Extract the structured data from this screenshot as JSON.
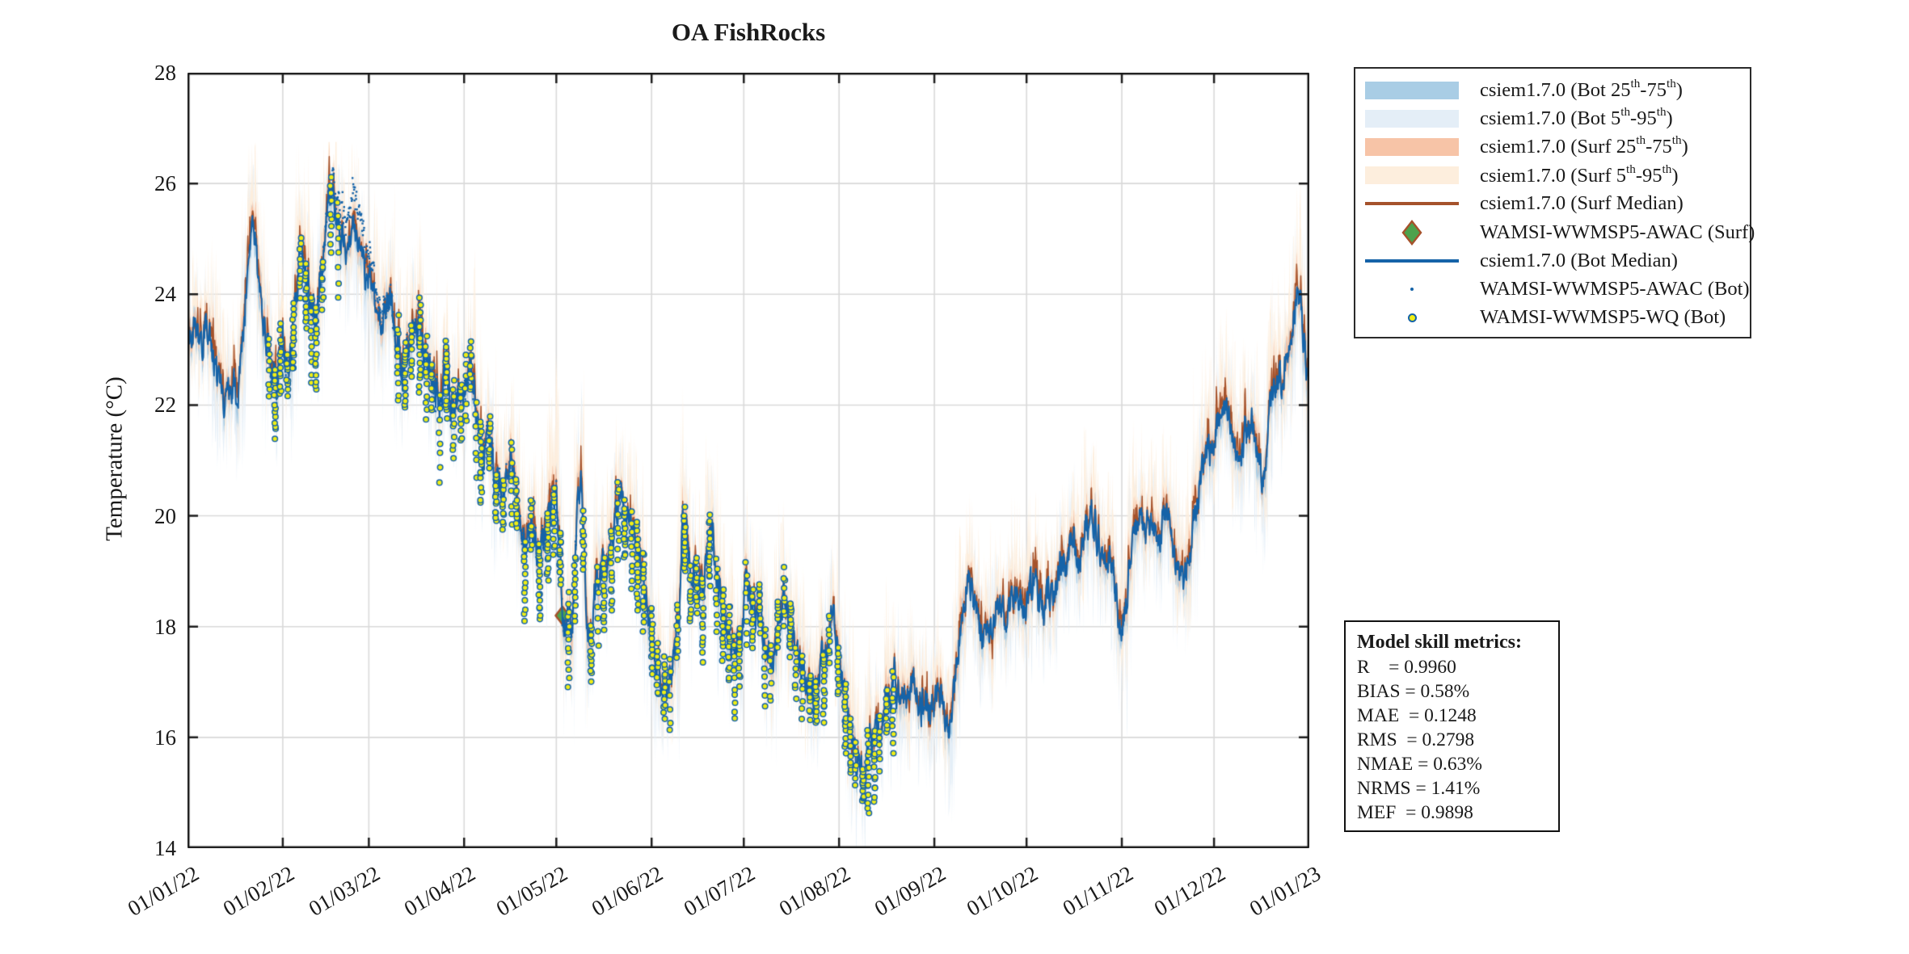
{
  "title": "OA FishRocks",
  "axes": {
    "ylabel": "Temperature (°C)",
    "x_tick_labels": [
      "01/01/22",
      "01/02/22",
      "01/03/22",
      "01/04/22",
      "01/05/22",
      "01/06/22",
      "01/07/22",
      "01/08/22",
      "01/09/22",
      "01/10/22",
      "01/11/22",
      "01/12/22",
      "01/01/23"
    ],
    "y_tick_labels": [
      "28",
      "26",
      "24",
      "22",
      "20",
      "18",
      "16",
      "14"
    ]
  },
  "colors": {
    "bot_median": "#1563a8",
    "surf_median": "#a5522b",
    "bot_25_75": "#a9cde5",
    "bot_5_95": "#e4eef7",
    "surf_25_75": "#f7c4a7",
    "surf_5_95": "#fdeedd",
    "awac_surf_fill": "#4ca24c",
    "awac_surf_edge": "#a5522b",
    "wq_fill": "#f0ee15",
    "wq_edge": "#1563a8",
    "grid": "#d9d9d9",
    "frame": "#1c1c1c"
  },
  "legend": {
    "items": [
      {
        "swatch": "band",
        "color": "#a9cde5",
        "label": "csiem1.7.0 (Bot 25th-75th)"
      },
      {
        "swatch": "band",
        "color": "#e4eef7",
        "label": "csiem1.7.0 (Bot 5th-95th)"
      },
      {
        "swatch": "band",
        "color": "#f7c4a7",
        "label": "csiem1.7.0 (Surf 25th-75th)"
      },
      {
        "swatch": "band",
        "color": "#fdeedd",
        "label": "csiem1.7.0 (Surf 5th-95th)"
      },
      {
        "swatch": "line",
        "color": "#a5522b",
        "label": "csiem1.7.0 (Surf Median)"
      },
      {
        "swatch": "diamond",
        "color": "#4ca24c",
        "edge": "#a5522b",
        "label": "WAMSI-WWMSP5-AWAC (Surf)"
      },
      {
        "swatch": "line",
        "color": "#1563a8",
        "label": "csiem1.7.0 (Bot Median)"
      },
      {
        "swatch": "dot",
        "color": "#1563a8",
        "label": "WAMSI-WWMSP5-AWAC (Bot)"
      },
      {
        "swatch": "circle",
        "color": "#f0ee15",
        "edge": "#1563a8",
        "label": "WAMSI-WWMSP5-WQ (Bot)"
      }
    ]
  },
  "metrics_box": {
    "title": "Model skill metrics:",
    "lines": [
      "R    = 0.9960",
      "BIAS = 0.58%",
      "MAE  = 0.1248",
      "RMS  = 0.2798",
      "NMAE = 0.63%",
      "NRMS = 1.41%",
      "MEF  = 0.9898"
    ]
  },
  "chart_data": {
    "type": "line",
    "title": "OA FishRocks",
    "xlabel": "",
    "ylabel": "Temperature (°C)",
    "x_unit": "days since 01/01/22",
    "ylim": [
      14,
      28
    ],
    "yticks": [
      14,
      16,
      18,
      20,
      22,
      24,
      26,
      28
    ],
    "x_tick_days": [
      0,
      31,
      59,
      90,
      120,
      151,
      181,
      212,
      243,
      273,
      304,
      334,
      365
    ],
    "x_tick_labels": [
      "01/01/22",
      "01/02/22",
      "01/03/22",
      "01/04/22",
      "01/05/22",
      "01/06/22",
      "01/07/22",
      "01/08/22",
      "01/09/22",
      "01/10/22",
      "01/11/22",
      "01/12/22",
      "01/01/23"
    ],
    "grid": true,
    "legend_position": "outside-top-right",
    "series": [
      {
        "name": "csiem1.7.0 (Bot Median)",
        "type": "line",
        "color": "#1563a8",
        "points": [
          [
            0,
            23.2
          ],
          [
            2,
            23.5
          ],
          [
            4,
            22.9
          ],
          [
            6,
            23.4
          ],
          [
            8,
            23.0
          ],
          [
            10,
            22.5
          ],
          [
            12,
            22.3
          ],
          [
            14,
            22.8
          ],
          [
            16,
            22.4
          ],
          [
            18,
            23.6
          ],
          [
            20,
            24.8
          ],
          [
            21,
            25.4
          ],
          [
            22,
            25.2
          ],
          [
            23,
            24.6
          ],
          [
            25,
            23.6
          ],
          [
            27,
            23.0
          ],
          [
            29,
            22.5
          ],
          [
            31,
            23.3
          ],
          [
            33,
            22.6
          ],
          [
            35,
            23.7
          ],
          [
            37,
            24.9
          ],
          [
            38,
            24.4
          ],
          [
            40,
            23.7
          ],
          [
            42,
            23.4
          ],
          [
            44,
            24.5
          ],
          [
            46,
            25.6
          ],
          [
            47,
            25.9
          ],
          [
            48,
            25.5
          ],
          [
            50,
            24.9
          ],
          [
            52,
            24.6
          ],
          [
            54,
            25.1
          ],
          [
            56,
            24.5
          ],
          [
            58,
            24.2
          ],
          [
            60,
            24.4
          ],
          [
            62,
            23.4
          ],
          [
            64,
            23.9
          ],
          [
            66,
            24.3
          ],
          [
            68,
            23.4
          ],
          [
            70,
            23.0
          ],
          [
            72,
            23.3
          ],
          [
            74,
            23.8
          ],
          [
            76,
            23.2
          ],
          [
            78,
            22.7
          ],
          [
            80,
            22.4
          ],
          [
            82,
            21.9
          ],
          [
            84,
            22.4
          ],
          [
            86,
            22.0
          ],
          [
            88,
            22.5
          ],
          [
            90,
            22.2
          ],
          [
            92,
            22.6
          ],
          [
            94,
            21.7
          ],
          [
            96,
            20.9
          ],
          [
            98,
            21.3
          ],
          [
            100,
            20.6
          ],
          [
            102,
            20.2
          ],
          [
            104,
            20.7
          ],
          [
            106,
            20.9
          ],
          [
            108,
            20.1
          ],
          [
            110,
            19.5
          ],
          [
            112,
            19.9
          ],
          [
            114,
            19.4
          ],
          [
            116,
            19.8
          ],
          [
            118,
            20.1
          ],
          [
            120,
            20.6
          ],
          [
            121,
            19.5
          ],
          [
            122,
            18.4
          ],
          [
            123,
            17.8
          ],
          [
            124,
            18.2
          ],
          [
            125,
            18.0
          ],
          [
            126,
            18.8
          ],
          [
            127,
            20.5
          ],
          [
            128,
            20.9
          ],
          [
            129,
            19.6
          ],
          [
            130,
            18.2
          ],
          [
            131,
            17.6
          ],
          [
            132,
            18.2
          ],
          [
            133,
            18.8
          ],
          [
            134,
            19.2
          ],
          [
            136,
            19.3
          ],
          [
            138,
            19.8
          ],
          [
            140,
            20.2
          ],
          [
            141,
            20.4
          ],
          [
            142,
            20.0
          ],
          [
            144,
            20.1
          ],
          [
            146,
            19.5
          ],
          [
            148,
            18.9
          ],
          [
            150,
            18.1
          ],
          [
            152,
            17.5
          ],
          [
            154,
            17.1
          ],
          [
            156,
            16.9
          ],
          [
            158,
            17.4
          ],
          [
            160,
            17.9
          ],
          [
            161,
            19.8
          ],
          [
            162,
            19.9
          ],
          [
            163,
            19.2
          ],
          [
            164,
            18.6
          ],
          [
            165,
            19.0
          ],
          [
            166,
            18.5
          ],
          [
            168,
            18.8
          ],
          [
            170,
            19.9
          ],
          [
            171,
            19.6
          ],
          [
            172,
            18.9
          ],
          [
            174,
            18.4
          ],
          [
            176,
            17.9
          ],
          [
            178,
            17.5
          ],
          [
            180,
            17.8
          ],
          [
            182,
            18.9
          ],
          [
            184,
            18.4
          ],
          [
            186,
            18.6
          ],
          [
            188,
            17.6
          ],
          [
            190,
            17.4
          ],
          [
            192,
            18.2
          ],
          [
            194,
            18.8
          ],
          [
            196,
            18.4
          ],
          [
            198,
            17.8
          ],
          [
            200,
            17.4
          ],
          [
            202,
            17.1
          ],
          [
            204,
            16.7
          ],
          [
            206,
            17.2
          ],
          [
            208,
            17.5
          ],
          [
            210,
            17.9
          ],
          [
            212,
            17.3
          ],
          [
            214,
            16.8
          ],
          [
            216,
            15.9
          ],
          [
            218,
            15.4
          ],
          [
            220,
            15.3
          ],
          [
            221,
            15.7
          ],
          [
            222,
            16.2
          ],
          [
            224,
            16.4
          ],
          [
            226,
            16.2
          ],
          [
            228,
            16.8
          ],
          [
            230,
            17.1
          ],
          [
            232,
            16.7
          ],
          [
            234,
            16.4
          ],
          [
            236,
            17.0
          ],
          [
            238,
            16.7
          ],
          [
            240,
            16.9
          ],
          [
            242,
            16.5
          ],
          [
            244,
            16.8
          ],
          [
            246,
            16.7
          ],
          [
            248,
            16.5
          ],
          [
            250,
            17.2
          ],
          [
            252,
            18.2
          ],
          [
            254,
            18.6
          ],
          [
            256,
            18.3
          ],
          [
            258,
            17.9
          ],
          [
            260,
            17.7
          ],
          [
            262,
            18.0
          ],
          [
            264,
            18.3
          ],
          [
            266,
            18.0
          ],
          [
            268,
            18.2
          ],
          [
            270,
            18.5
          ],
          [
            272,
            18.3
          ],
          [
            274,
            18.6
          ],
          [
            276,
            18.8
          ],
          [
            278,
            18.4
          ],
          [
            280,
            19.0
          ],
          [
            282,
            18.7
          ],
          [
            284,
            19.1
          ],
          [
            286,
            18.8
          ],
          [
            288,
            19.3
          ],
          [
            290,
            18.9
          ],
          [
            292,
            19.6
          ],
          [
            294,
            19.8
          ],
          [
            296,
            19.4
          ],
          [
            298,
            19.0
          ],
          [
            300,
            19.4
          ],
          [
            302,
            18.6
          ],
          [
            304,
            17.9
          ],
          [
            306,
            18.8
          ],
          [
            308,
            19.6
          ],
          [
            310,
            20.0
          ],
          [
            312,
            19.5
          ],
          [
            314,
            19.8
          ],
          [
            316,
            19.3
          ],
          [
            318,
            19.9
          ],
          [
            320,
            19.6
          ],
          [
            322,
            19.1
          ],
          [
            324,
            18.8
          ],
          [
            326,
            19.4
          ],
          [
            328,
            20.2
          ],
          [
            330,
            20.8
          ],
          [
            332,
            21.2
          ],
          [
            334,
            21.4
          ],
          [
            336,
            21.9
          ],
          [
            338,
            22.0
          ],
          [
            340,
            21.4
          ],
          [
            342,
            21.0
          ],
          [
            344,
            21.5
          ],
          [
            346,
            21.7
          ],
          [
            348,
            21.2
          ],
          [
            350,
            20.6
          ],
          [
            352,
            21.8
          ],
          [
            354,
            22.4
          ],
          [
            356,
            22.3
          ],
          [
            358,
            22.7
          ],
          [
            360,
            23.4
          ],
          [
            361,
            24.0
          ],
          [
            362,
            24.2
          ],
          [
            363,
            23.3
          ],
          [
            364,
            22.7
          ],
          [
            365,
            23.0
          ]
        ]
      },
      {
        "name": "csiem1.7.0 (Surf Median)",
        "type": "line",
        "color": "#a5522b",
        "same_points_as": "csiem1.7.0 (Bot Median)",
        "diurnal_spikes_up_to_degC": 1.3
      },
      {
        "name": "csiem1.7.0 (Bot 25th-75th)",
        "type": "band",
        "color": "#a9cde5",
        "typical_half_width_degC": 0.25
      },
      {
        "name": "csiem1.7.0 (Bot 5th-95th)",
        "type": "band",
        "color": "#e4eef7",
        "typical_half_width_degC": 0.65
      },
      {
        "name": "csiem1.7.0 (Surf 25th-75th)",
        "type": "band",
        "color": "#f7c4a7",
        "typical_half_width_degC": 0.3
      },
      {
        "name": "csiem1.7.0 (Surf 5th-95th)",
        "type": "band",
        "color": "#fdeedd",
        "typical_half_width_degC": 0.9
      },
      {
        "name": "WAMSI-WWMSP5-AWAC (Surf)",
        "type": "scatter",
        "marker": "diamond",
        "color": "#4ca24c",
        "edge": "#a5522b",
        "points": [
          [
            122,
            18.2
          ]
        ]
      },
      {
        "name": "WAMSI-WWMSP5-AWAC (Bot)",
        "type": "scatter",
        "marker": "dot",
        "color": "#1563a8",
        "deployment_days": [
          26,
          126
        ],
        "follows": "bot median",
        "warm_bias_days": [
          47,
          64
        ],
        "max_bias_degC": 0.6
      },
      {
        "name": "WAMSI-WWMSP5-WQ (Bot)",
        "type": "scatter",
        "marker": "circle",
        "color": "#f0ee15",
        "edge": "#1563a8",
        "cast_periods_days": [
          [
            26,
            50
          ],
          [
            68,
            231
          ]
        ],
        "cast_span_below_degC": 1.0,
        "cast_span_above_degC": 0.35
      }
    ]
  }
}
